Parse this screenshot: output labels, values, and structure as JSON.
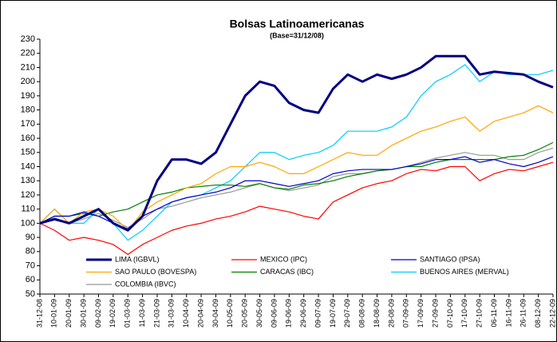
{
  "chart_data": {
    "type": "line",
    "title": "Bolsas Latinoamericanas",
    "subtitle": "(Base=31/12/08)",
    "categories": [
      "31-12-08",
      "10-01-09",
      "20-01-09",
      "30-01-09",
      "09-02-09",
      "19-02-09",
      "01-03-09",
      "11-03-09",
      "21-03-09",
      "31-03-09",
      "10-04-09",
      "20-04-09",
      "30-04-09",
      "10-05-09",
      "20-05-09",
      "30-05-09",
      "09-06-09",
      "19-06-09",
      "29-06-09",
      "09-07-09",
      "19-07-09",
      "29-07-09",
      "08-08-09",
      "18-08-09",
      "28-08-09",
      "07-09-09",
      "17-09-09",
      "27-09-09",
      "07-10-09",
      "17-10-09",
      "27-10-09",
      "06-11-09",
      "16-11-09",
      "26-11-09",
      "08-12-09",
      "22-12-09"
    ],
    "series": [
      {
        "name": "LIMA (IGBVL)",
        "color": "#000080",
        "values": [
          100,
          103,
          100,
          105,
          110,
          100,
          95,
          105,
          130,
          145,
          145,
          142,
          150,
          170,
          190,
          200,
          197,
          185,
          180,
          178,
          195,
          205,
          200,
          205,
          202,
          205,
          210,
          218,
          218,
          218,
          205,
          207,
          206,
          205,
          200,
          196
        ]
      },
      {
        "name": "MEXICO (IPC)",
        "color": "#ff0000",
        "values": [
          100,
          95,
          88,
          90,
          88,
          85,
          78,
          85,
          90,
          95,
          98,
          100,
          103,
          105,
          108,
          112,
          110,
          108,
          105,
          103,
          115,
          120,
          125,
          128,
          130,
          135,
          138,
          137,
          140,
          140,
          130,
          135,
          138,
          137,
          140,
          143
        ]
      },
      {
        "name": "SANTIAGO (IPSA)",
        "color": "#0000cc",
        "values": [
          100,
          105,
          105,
          108,
          105,
          100,
          96,
          105,
          110,
          115,
          118,
          120,
          122,
          125,
          130,
          130,
          128,
          126,
          128,
          130,
          135,
          137,
          138,
          138,
          138,
          140,
          142,
          145,
          145,
          147,
          143,
          145,
          142,
          140,
          143,
          147
        ]
      },
      {
        "name": "SAO PAULO (BOVESPA)",
        "color": "#ffa500",
        "values": [
          100,
          110,
          100,
          108,
          110,
          105,
          95,
          108,
          115,
          120,
          125,
          128,
          135,
          140,
          140,
          143,
          140,
          135,
          135,
          140,
          145,
          150,
          148,
          148,
          155,
          160,
          165,
          168,
          172,
          175,
          165,
          172,
          175,
          178,
          183,
          178
        ]
      },
      {
        "name": "CARACAS (IBC)",
        "color": "#008000",
        "values": [
          100,
          105,
          105,
          107,
          105,
          108,
          110,
          115,
          120,
          122,
          125,
          126,
          127,
          127,
          126,
          128,
          125,
          124,
          127,
          128,
          130,
          133,
          135,
          137,
          138,
          140,
          140,
          143,
          145,
          145,
          145,
          145,
          147,
          148,
          152,
          157
        ]
      },
      {
        "name": "BUENOS AIRES (MERVAL)",
        "color": "#00ccff",
        "values": [
          100,
          110,
          100,
          100,
          110,
          100,
          88,
          95,
          105,
          115,
          118,
          120,
          125,
          130,
          140,
          150,
          150,
          145,
          148,
          150,
          155,
          165,
          165,
          165,
          168,
          175,
          190,
          200,
          205,
          212,
          200,
          207,
          205,
          205,
          205,
          208
        ]
      },
      {
        "name": "COLOMBIA (IBVC)",
        "color": "#999999",
        "values": [
          100,
          102,
          100,
          103,
          107,
          102,
          97,
          103,
          110,
          112,
          115,
          118,
          120,
          122,
          125,
          128,
          125,
          123,
          125,
          127,
          133,
          135,
          135,
          137,
          138,
          140,
          143,
          146,
          148,
          150,
          148,
          148,
          145,
          145,
          150,
          153
        ]
      }
    ],
    "ylim": [
      50,
      230
    ],
    "yticks": [
      50,
      60,
      70,
      80,
      90,
      100,
      110,
      120,
      130,
      140,
      150,
      160,
      170,
      180,
      190,
      200,
      210,
      220,
      230
    ],
    "grid": false
  }
}
